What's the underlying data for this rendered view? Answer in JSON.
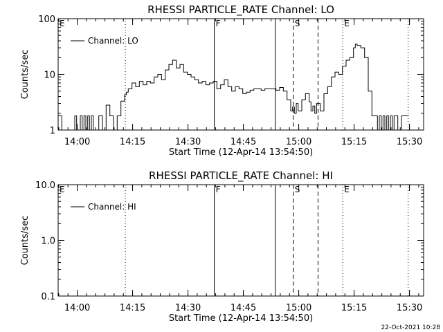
{
  "page": {
    "footer_timestamp": "22-Oct-2021 10:28"
  },
  "chart_data": [
    {
      "type": "line",
      "title": "RHESSI PARTICLE_RATE Channel: LO",
      "xlabel": "Start Time (12-Apr-14 13:54:50)",
      "ylabel": "Counts/sec",
      "x_unit": "minutes after 13:54:50",
      "xlim": [
        0,
        99
      ],
      "ylim": [
        1,
        100
      ],
      "yscale": "log",
      "x_ticks": [
        {
          "label": "14:00",
          "value": 5.17
        },
        {
          "label": "14:15",
          "value": 20.17
        },
        {
          "label": "14:30",
          "value": 35.17
        },
        {
          "label": "14:45",
          "value": 50.17
        },
        {
          "label": "15:00",
          "value": 65.17
        },
        {
          "label": "15:15",
          "value": 80.17
        },
        {
          "label": "15:30",
          "value": 95.17
        }
      ],
      "y_ticks": [
        {
          "label": "100",
          "value": 100
        },
        {
          "label": "10",
          "value": 10
        },
        {
          "label": "1",
          "value": 1
        }
      ],
      "legend": {
        "label": "Channel: LO",
        "position": "top-left"
      },
      "markers": [
        {
          "label": "E",
          "x": 0,
          "style": "dotted"
        },
        {
          "label": "",
          "x": 18.2,
          "style": "dotted"
        },
        {
          "label": "F",
          "x": 42.3,
          "style": "solid"
        },
        {
          "label": "",
          "x": 58.8,
          "style": "solid"
        },
        {
          "label": "S",
          "x": 63.7,
          "style": "dashed"
        },
        {
          "label": "",
          "x": 70.4,
          "style": "dashed"
        },
        {
          "label": "E",
          "x": 77.1,
          "style": "dotted"
        },
        {
          "label": "",
          "x": 94.8,
          "style": "dotted"
        }
      ],
      "series": [
        {
          "x": [
            0,
            1,
            1.5,
            2,
            3,
            4,
            4.5,
            5,
            6,
            6.5,
            7,
            7.5,
            8,
            8.5,
            9,
            9.5,
            10,
            10.5,
            11,
            12,
            13,
            14,
            15,
            15.5,
            16,
            17,
            18,
            18.5,
            19,
            20,
            21,
            22,
            23,
            24,
            25,
            26,
            27,
            28,
            29,
            30,
            31,
            32,
            33,
            34,
            35,
            36,
            37,
            38,
            39,
            40,
            41,
            42,
            43,
            44,
            45,
            46,
            47,
            48,
            49,
            50,
            51,
            52,
            53,
            54,
            55,
            56,
            57,
            58,
            59,
            60,
            61,
            62,
            63,
            63.5,
            64,
            64.5,
            65,
            66,
            67,
            68,
            68.5,
            69,
            69.5,
            70,
            71,
            72,
            73,
            74,
            75,
            76,
            77,
            78,
            79,
            80,
            80.5,
            81,
            82,
            83,
            84,
            85,
            86,
            86.5,
            87,
            87.5,
            88,
            88.5,
            89,
            89.5,
            90,
            90.5,
            91,
            92,
            93,
            94,
            95
          ],
          "values": [
            1.8,
            1,
            1,
            1,
            1,
            1,
            1.8,
            1,
            1.8,
            1,
            1.8,
            1,
            1.8,
            1,
            1.8,
            1,
            1,
            1,
            1.8,
            1,
            2.8,
            1.8,
            1,
            1,
            1.8,
            3.3,
            4.3,
            4.8,
            5.5,
            7,
            6,
            7.5,
            6.5,
            7.5,
            7,
            9,
            10,
            8,
            12,
            15,
            18,
            13,
            15,
            11,
            10,
            9,
            8,
            7,
            7.5,
            6.5,
            7,
            7.5,
            5.5,
            6.5,
            8,
            6,
            5,
            6,
            5.5,
            4.5,
            4.8,
            5.2,
            5.5,
            5.5,
            5.2,
            5.5,
            5.5,
            5.5,
            5.2,
            5.8,
            5,
            3.5,
            2.2,
            2.6,
            2,
            3,
            2.2,
            3.5,
            4.5,
            3.2,
            2.2,
            2.7,
            2,
            3,
            2.2,
            4.5,
            6,
            9,
            11,
            10,
            14,
            18,
            20,
            30,
            35,
            33,
            30,
            20,
            5,
            1.8,
            1.8,
            1,
            1.8,
            1,
            1.8,
            1,
            1.8,
            1,
            1.8,
            1,
            1.8,
            1,
            1.8,
            1.8,
            1.8
          ]
        }
      ]
    },
    {
      "type": "line",
      "title": "RHESSI PARTICLE_RATE Channel: HI",
      "xlabel": "Start Time (12-Apr-14 13:54:50)",
      "ylabel": "Counts/sec",
      "x_unit": "minutes after 13:54:50",
      "xlim": [
        0,
        99
      ],
      "ylim": [
        0.1,
        10
      ],
      "yscale": "log",
      "x_ticks": [
        {
          "label": "14:00",
          "value": 5.17
        },
        {
          "label": "14:15",
          "value": 20.17
        },
        {
          "label": "14:30",
          "value": 35.17
        },
        {
          "label": "14:45",
          "value": 50.17
        },
        {
          "label": "15:00",
          "value": 65.17
        },
        {
          "label": "15:15",
          "value": 80.17
        },
        {
          "label": "15:30",
          "value": 95.17
        }
      ],
      "y_ticks": [
        {
          "label": "10.0",
          "value": 10
        },
        {
          "label": "1.0",
          "value": 1
        },
        {
          "label": "0.1",
          "value": 0.1
        }
      ],
      "legend": {
        "label": "Channel: HI",
        "position": "top-left"
      },
      "markers": [
        {
          "label": "E",
          "x": 0,
          "style": "dotted"
        },
        {
          "label": "",
          "x": 18.2,
          "style": "dotted"
        },
        {
          "label": "F",
          "x": 42.3,
          "style": "solid"
        },
        {
          "label": "",
          "x": 58.8,
          "style": "solid"
        },
        {
          "label": "S",
          "x": 63.7,
          "style": "dashed"
        },
        {
          "label": "",
          "x": 70.4,
          "style": "dashed"
        },
        {
          "label": "E",
          "x": 77.1,
          "style": "dotted"
        },
        {
          "label": "",
          "x": 94.8,
          "style": "dotted"
        }
      ],
      "series": []
    }
  ]
}
